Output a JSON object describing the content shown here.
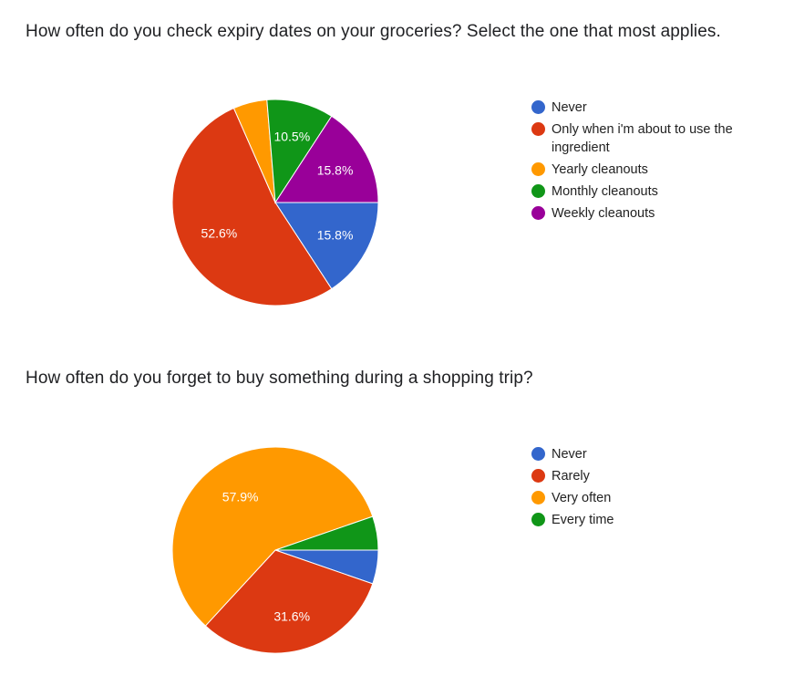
{
  "chart_data": [
    {
      "type": "pie",
      "title": "How often do you check expiry dates on your groceries? Select the one that most applies.",
      "categories": [
        "Never",
        "Only when i'm about to use the ingredient",
        "Yearly cleanouts",
        "Monthly cleanouts",
        "Weekly cleanouts"
      ],
      "values": [
        15.8,
        52.6,
        5.3,
        10.5,
        15.8
      ],
      "labels": [
        "15.8%",
        "52.6%",
        "",
        "10.5%",
        "15.8%"
      ],
      "colors": [
        "#3366cc",
        "#dc3912",
        "#ff9900",
        "#109618",
        "#990099"
      ],
      "legend_position": "right"
    },
    {
      "type": "pie",
      "title": "How often do you forget to buy something during a shopping trip?",
      "categories": [
        "Never",
        "Rarely",
        "Very often",
        "Every time"
      ],
      "values": [
        5.3,
        31.6,
        57.9,
        5.3
      ],
      "labels": [
        "",
        "31.6%",
        "57.9%",
        ""
      ],
      "colors": [
        "#3366cc",
        "#dc3912",
        "#ff9900",
        "#109618"
      ],
      "legend_position": "right"
    }
  ]
}
